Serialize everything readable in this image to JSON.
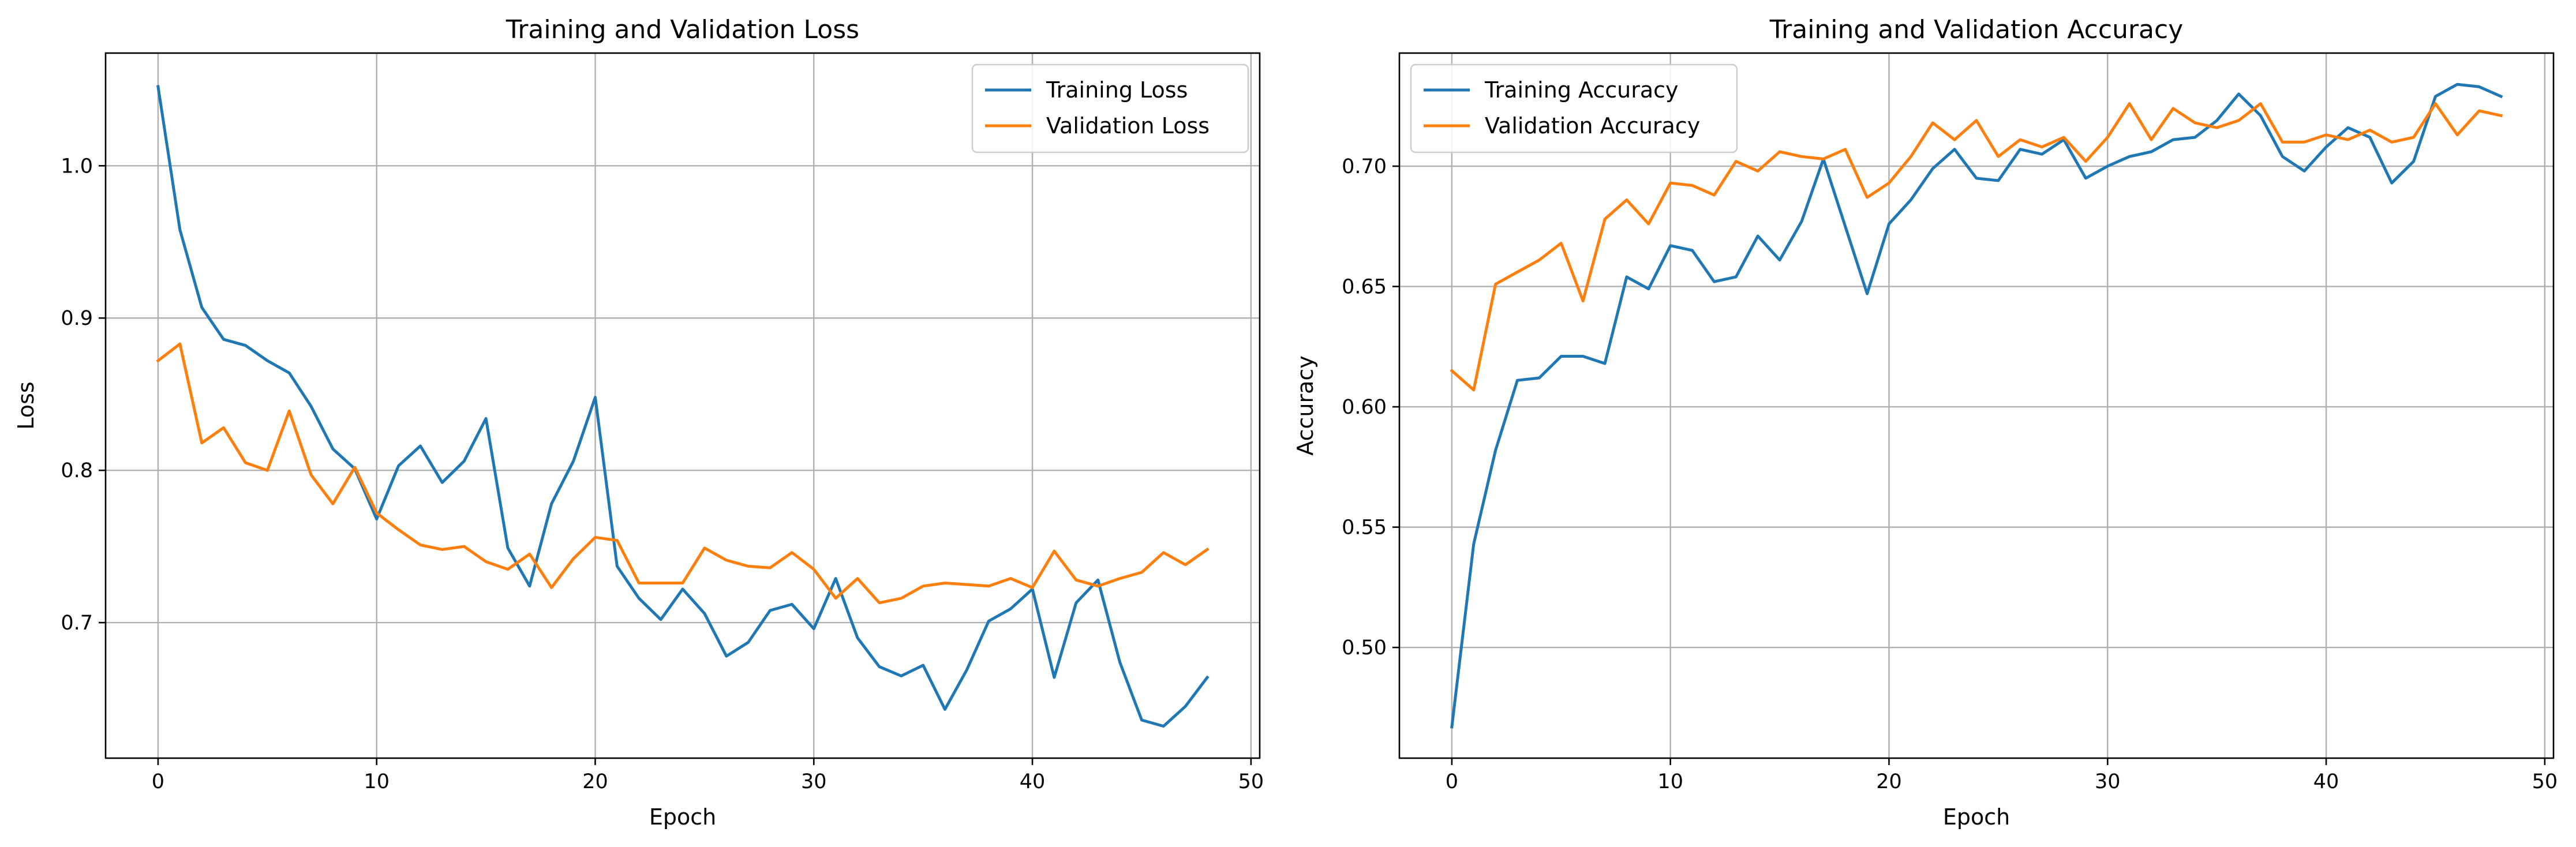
{
  "chart_data": [
    {
      "type": "line",
      "title": "Training and Validation Loss",
      "xlabel": "Epoch",
      "ylabel": "Loss",
      "xlim": [
        -2.4,
        50.4
      ],
      "ylim": [
        0.611,
        1.074
      ],
      "xticks": [
        0,
        10,
        20,
        30,
        40,
        50
      ],
      "yticks": [
        0.7,
        0.8,
        0.9,
        1.0
      ],
      "xtick_labels": [
        "0",
        "10",
        "20",
        "30",
        "40",
        "50"
      ],
      "ytick_labels": [
        "0.7",
        "0.8",
        "0.9",
        "1.0"
      ],
      "grid": true,
      "legend": "top-right",
      "x": [
        0,
        1,
        2,
        3,
        4,
        5,
        6,
        7,
        8,
        9,
        10,
        11,
        12,
        13,
        14,
        15,
        16,
        17,
        18,
        19,
        20,
        21,
        22,
        23,
        24,
        25,
        26,
        27,
        28,
        29,
        30,
        31,
        32,
        33,
        34,
        35,
        36,
        37,
        38,
        39,
        40,
        41,
        42,
        43,
        44,
        45,
        46,
        47,
        48
      ],
      "series": [
        {
          "name": "Training Loss",
          "color": "#1f77b4",
          "values": [
            1.052,
            0.958,
            0.907,
            0.886,
            0.882,
            0.872,
            0.864,
            0.842,
            0.814,
            0.801,
            0.768,
            0.803,
            0.816,
            0.792,
            0.806,
            0.834,
            0.749,
            0.724,
            0.778,
            0.806,
            0.848,
            0.737,
            0.716,
            0.702,
            0.722,
            0.706,
            0.678,
            0.687,
            0.708,
            0.712,
            0.696,
            0.729,
            0.69,
            0.671,
            0.665,
            0.672,
            0.643,
            0.669,
            0.701,
            0.709,
            0.722,
            0.664,
            0.713,
            0.728,
            0.674,
            0.636,
            0.632,
            0.645,
            0.664
          ]
        },
        {
          "name": "Validation Loss",
          "color": "#ff7f0e",
          "values": [
            0.872,
            0.883,
            0.818,
            0.828,
            0.805,
            0.8,
            0.839,
            0.797,
            0.778,
            0.802,
            0.772,
            0.761,
            0.751,
            0.748,
            0.75,
            0.74,
            0.735,
            0.745,
            0.723,
            0.742,
            0.756,
            0.754,
            0.726,
            0.726,
            0.726,
            0.749,
            0.741,
            0.737,
            0.736,
            0.746,
            0.735,
            0.716,
            0.729,
            0.713,
            0.716,
            0.724,
            0.726,
            0.725,
            0.724,
            0.729,
            0.723,
            0.747,
            0.728,
            0.724,
            0.729,
            0.733,
            0.746,
            0.738,
            0.748
          ]
        }
      ]
    },
    {
      "type": "line",
      "title": "Training and Validation Accuracy",
      "xlabel": "Epoch",
      "ylabel": "Accuracy",
      "xlim": [
        -2.4,
        50.4
      ],
      "ylim": [
        0.454,
        0.747
      ],
      "xticks": [
        0,
        10,
        20,
        30,
        40,
        50
      ],
      "yticks": [
        0.5,
        0.55,
        0.6,
        0.65,
        0.7
      ],
      "xtick_labels": [
        "0",
        "10",
        "20",
        "30",
        "40",
        "50"
      ],
      "ytick_labels": [
        "0.50",
        "0.55",
        "0.60",
        "0.65",
        "0.70"
      ],
      "grid": true,
      "legend": "top-left",
      "x": [
        0,
        1,
        2,
        3,
        4,
        5,
        6,
        7,
        8,
        9,
        10,
        11,
        12,
        13,
        14,
        15,
        16,
        17,
        18,
        19,
        20,
        21,
        22,
        23,
        24,
        25,
        26,
        27,
        28,
        29,
        30,
        31,
        32,
        33,
        34,
        35,
        36,
        37,
        38,
        39,
        40,
        41,
        42,
        43,
        44,
        45,
        46,
        47,
        48
      ],
      "series": [
        {
          "name": "Training Accuracy",
          "color": "#1f77b4",
          "values": [
            0.467,
            0.543,
            0.582,
            0.611,
            0.612,
            0.621,
            0.621,
            0.618,
            0.654,
            0.649,
            0.667,
            0.665,
            0.652,
            0.654,
            0.671,
            0.661,
            0.677,
            0.703,
            0.675,
            0.647,
            0.676,
            0.686,
            0.699,
            0.707,
            0.695,
            0.694,
            0.707,
            0.705,
            0.711,
            0.695,
            0.7,
            0.704,
            0.706,
            0.711,
            0.712,
            0.719,
            0.73,
            0.721,
            0.704,
            0.698,
            0.708,
            0.716,
            0.712,
            0.693,
            0.702,
            0.729,
            0.734,
            0.733,
            0.729
          ]
        },
        {
          "name": "Validation Accuracy",
          "color": "#ff7f0e",
          "values": [
            0.615,
            0.607,
            0.651,
            0.656,
            0.661,
            0.668,
            0.644,
            0.678,
            0.686,
            0.676,
            0.693,
            0.692,
            0.688,
            0.702,
            0.698,
            0.706,
            0.704,
            0.703,
            0.707,
            0.687,
            0.693,
            0.704,
            0.718,
            0.711,
            0.719,
            0.704,
            0.711,
            0.708,
            0.712,
            0.702,
            0.712,
            0.726,
            0.711,
            0.724,
            0.718,
            0.716,
            0.719,
            0.726,
            0.71,
            0.71,
            0.713,
            0.711,
            0.715,
            0.71,
            0.712,
            0.726,
            0.713,
            0.723,
            0.721
          ]
        }
      ]
    }
  ]
}
